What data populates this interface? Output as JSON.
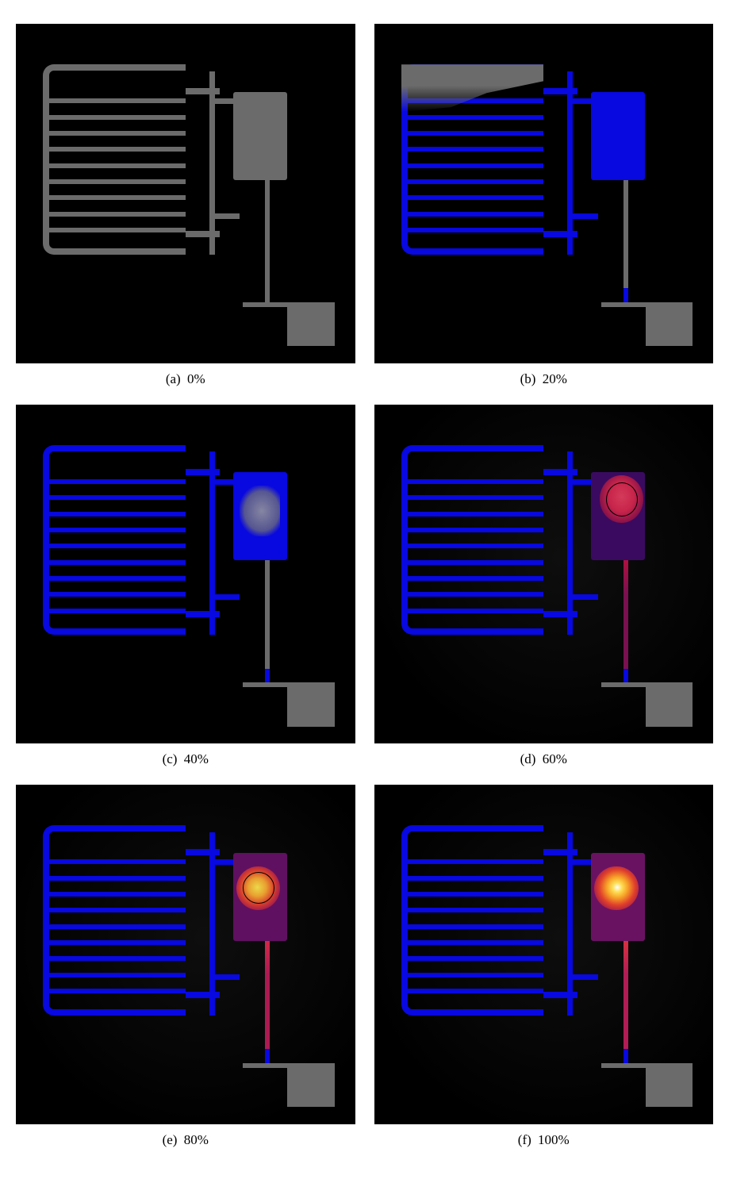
{
  "figure": {
    "grid_cols": 2,
    "panel_aspect": 1.0,
    "font_family": "Palatino-serif",
    "caption_fontsize": 17,
    "panels": [
      {
        "tag": "(a)",
        "pct": "0%",
        "structure_color": "#6b6b6b",
        "chamber_color": "#6b6b6b",
        "pipe_color": "#6b6b6b",
        "show_gray_residue": false,
        "show_chamber_gray_patch": false,
        "hotspot": null,
        "show_vignette": false
      },
      {
        "tag": "(b)",
        "pct": "20%",
        "structure_color": "#0808e0",
        "chamber_color": "#0808e0",
        "pipe_color": "#6b6b6b",
        "pipe_bottom_tip_color": "#0808e0",
        "show_gray_residue": true,
        "show_chamber_gray_patch": false,
        "hotspot": null,
        "show_vignette": false
      },
      {
        "tag": "(c)",
        "pct": "40%",
        "structure_color": "#0808e0",
        "chamber_color": "#0808e0",
        "pipe_color": "#6b6b6b",
        "pipe_bottom_tip_color": "#0808e0",
        "show_gray_residue": false,
        "show_chamber_gray_patch": true,
        "hotspot": null,
        "show_vignette": false
      },
      {
        "tag": "(d)",
        "pct": "60%",
        "structure_color": "#0808e0",
        "chamber_color": "#3a0a60",
        "pipe_color": "#7a1050",
        "pipe_top_color": "#b01040",
        "pipe_bottom_tip_color": "#0808e0",
        "show_gray_residue": false,
        "show_chamber_gray_patch": false,
        "hotspot": {
          "left_pct": 66.5,
          "top_pct": 21,
          "w_pct": 13,
          "h_pct": 14,
          "gradient": "radial-gradient(ellipse at 50% 45%, #d43a5a 0%, #c8254a 40%, #8a1248 70%, rgba(0,0,0,0) 95%)",
          "outline": true
        },
        "show_vignette": true
      },
      {
        "tag": "(e)",
        "pct": "80%",
        "structure_color": "#0808e0",
        "chamber_color": "#601060",
        "pipe_color": "#ad1a52",
        "pipe_top_color": "#d22848",
        "pipe_bottom_tip_color": "#0808e0",
        "show_gray_residue": false,
        "show_chamber_gray_patch": false,
        "hotspot": {
          "left_pct": 65,
          "top_pct": 24,
          "w_pct": 13,
          "h_pct": 13,
          "gradient": "radial-gradient(circle at 48% 48%, #ecd84a 0%, #e8a030 28%, #d9402c 52%, #9c1850 75%, rgba(0,0,0,0) 95%)",
          "outline": true
        },
        "show_vignette": true
      },
      {
        "tag": "(f)",
        "pct": "100%",
        "structure_color": "#0808e0",
        "chamber_color": "#6a1262",
        "pipe_color": "#b21c54",
        "pipe_top_color": "#d83040",
        "pipe_bottom_tip_color": "#0808e0",
        "show_gray_residue": false,
        "show_chamber_gray_patch": false,
        "hotspot": {
          "left_pct": 65,
          "top_pct": 24,
          "w_pct": 13,
          "h_pct": 13,
          "gradient": "radial-gradient(circle at 52% 48%, #ffffff 0%, #ffe058 14%, #f7a328 32%, #e0402a 55%, #9a1852 78%, rgba(0,0,0,0) 96%)",
          "outline": false
        },
        "show_vignette": true
      }
    ],
    "slat_positions_pct": [
      18,
      26.5,
      35,
      43.5,
      52,
      60.5,
      69,
      77.5,
      86
    ]
  },
  "colors": {
    "page_bg": "#ffffff",
    "panel_bg": "#000000",
    "base_gray": "#6b6b6b",
    "cold_blue": "#0808e0"
  }
}
